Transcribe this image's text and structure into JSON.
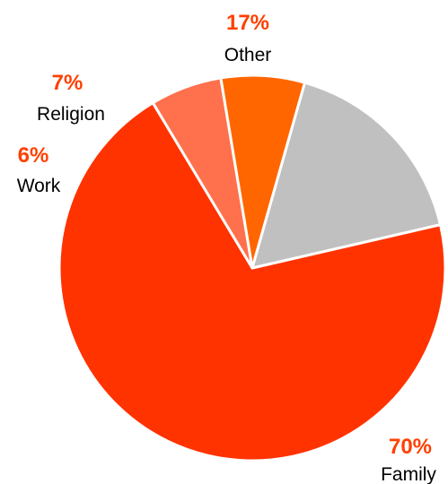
{
  "chart_data": {
    "type": "pie",
    "categories": [
      "Family",
      "Work",
      "Religion",
      "Other"
    ],
    "values": [
      70,
      6,
      7,
      17
    ],
    "value_labels": [
      "70%",
      "6%",
      "7%",
      "17%"
    ],
    "unit": "%",
    "colors": [
      "#ff3300",
      "#ff704d",
      "#ff6600",
      "#c0c0c0"
    ],
    "label_color": "#ff4000",
    "legend": "none",
    "title": ""
  }
}
